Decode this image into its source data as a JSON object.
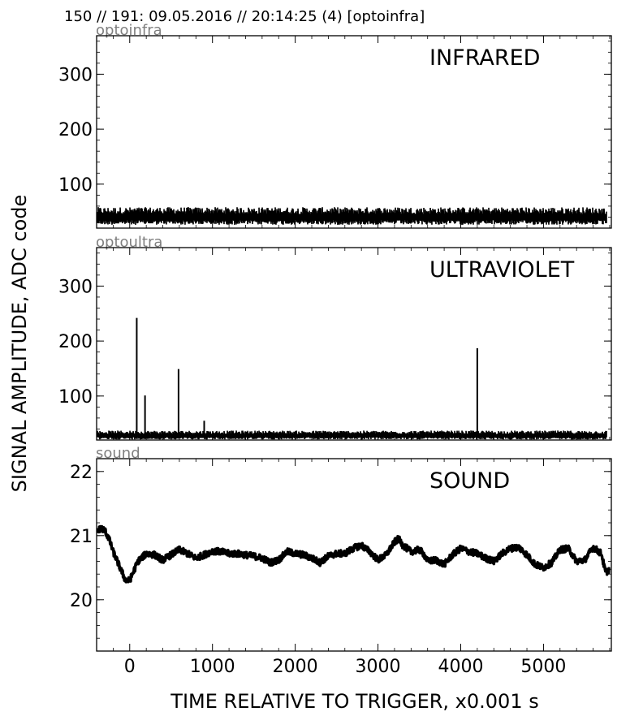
{
  "header": "150 // 191:   09.05.2016 // 20:14:25 (4)  [optoinfra]",
  "ylabel": "SIGNAL AMPLITUDE,  ADC code",
  "xlabel": "TIME RELATIVE TO TRIGGER,   x0.001 s",
  "chart_data": [
    {
      "type": "line",
      "subtitle": "optoinfra",
      "label": "INFRARED",
      "xlim": [
        -400,
        5820
      ],
      "ylim": [
        20,
        370
      ],
      "yticks": [
        100,
        200,
        300
      ],
      "xticks": [
        0,
        1000,
        2000,
        3000,
        4000,
        5000
      ],
      "baseline": 40,
      "noise": 14,
      "spikes": []
    },
    {
      "type": "line",
      "subtitle": "optoultra",
      "label": "ULTRAVIOLET",
      "xlim": [
        -400,
        5820
      ],
      "ylim": [
        20,
        370
      ],
      "yticks": [
        100,
        200,
        300
      ],
      "xticks": [
        0,
        1000,
        2000,
        3000,
        4000,
        5000
      ],
      "baseline": 28,
      "noise": 7,
      "spikes": [
        {
          "x": 85,
          "y": 242
        },
        {
          "x": 185,
          "y": 101
        },
        {
          "x": 590,
          "y": 149
        },
        {
          "x": 900,
          "y": 55
        },
        {
          "x": 4200,
          "y": 187
        }
      ]
    },
    {
      "type": "line",
      "subtitle": "sound",
      "label": "SOUND",
      "xlim": [
        -400,
        5820
      ],
      "ylim": [
        19.2,
        22.2
      ],
      "yticks": [
        20,
        21,
        22
      ],
      "xticks": [
        0,
        1000,
        2000,
        3000,
        4000,
        5000
      ],
      "xticklabels": [
        "0",
        "1000",
        "2000",
        "3000",
        "4000",
        "5000"
      ],
      "band": 0.05,
      "envelope": [
        [
          -400,
          21.05
        ],
        [
          -350,
          21.12
        ],
        [
          -300,
          21.08
        ],
        [
          -250,
          20.95
        ],
        [
          -200,
          20.75
        ],
        [
          -100,
          20.45
        ],
        [
          -50,
          20.3
        ],
        [
          0,
          20.3
        ],
        [
          50,
          20.45
        ],
        [
          100,
          20.6
        ],
        [
          200,
          20.72
        ],
        [
          300,
          20.7
        ],
        [
          400,
          20.62
        ],
        [
          500,
          20.7
        ],
        [
          600,
          20.78
        ],
        [
          700,
          20.72
        ],
        [
          800,
          20.65
        ],
        [
          900,
          20.7
        ],
        [
          1000,
          20.76
        ],
        [
          1100,
          20.75
        ],
        [
          1200,
          20.72
        ],
        [
          1300,
          20.72
        ],
        [
          1400,
          20.7
        ],
        [
          1500,
          20.68
        ],
        [
          1600,
          20.65
        ],
        [
          1700,
          20.58
        ],
        [
          1800,
          20.62
        ],
        [
          1900,
          20.75
        ],
        [
          2000,
          20.72
        ],
        [
          2100,
          20.7
        ],
        [
          2200,
          20.65
        ],
        [
          2300,
          20.58
        ],
        [
          2400,
          20.68
        ],
        [
          2500,
          20.72
        ],
        [
          2600,
          20.72
        ],
        [
          2700,
          20.8
        ],
        [
          2800,
          20.85
        ],
        [
          2900,
          20.75
        ],
        [
          3000,
          20.62
        ],
        [
          3100,
          20.7
        ],
        [
          3200,
          20.9
        ],
        [
          3250,
          20.95
        ],
        [
          3300,
          20.85
        ],
        [
          3400,
          20.75
        ],
        [
          3500,
          20.78
        ],
        [
          3550,
          20.72
        ],
        [
          3600,
          20.6
        ],
        [
          3700,
          20.62
        ],
        [
          3800,
          20.55
        ],
        [
          3900,
          20.7
        ],
        [
          4000,
          20.8
        ],
        [
          4100,
          20.75
        ],
        [
          4200,
          20.72
        ],
        [
          4300,
          20.65
        ],
        [
          4400,
          20.6
        ],
        [
          4500,
          20.72
        ],
        [
          4600,
          20.8
        ],
        [
          4700,
          20.82
        ],
        [
          4800,
          20.7
        ],
        [
          4900,
          20.55
        ],
        [
          5000,
          20.5
        ],
        [
          5100,
          20.58
        ],
        [
          5200,
          20.78
        ],
        [
          5300,
          20.8
        ],
        [
          5400,
          20.6
        ],
        [
          5500,
          20.62
        ],
        [
          5600,
          20.82
        ],
        [
          5700,
          20.72
        ],
        [
          5750,
          20.42
        ],
        [
          5800,
          20.48
        ]
      ]
    }
  ]
}
